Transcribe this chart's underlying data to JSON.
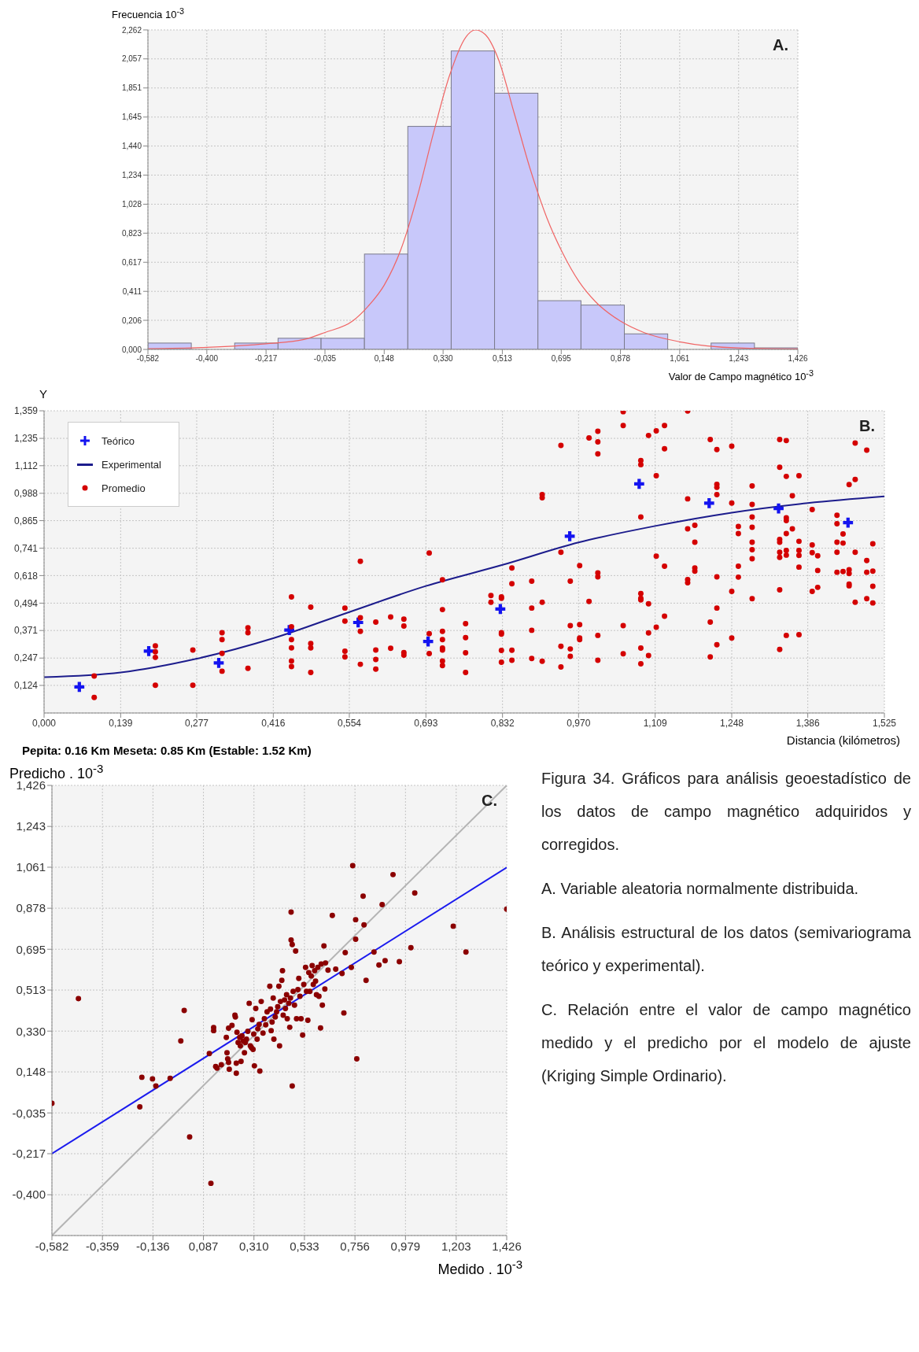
{
  "chart_data": [
    {
      "type": "histogram",
      "ylabel": "Frecuencia 10$^{-3}$",
      "xlabel": "Valor de Campo magnético 10$^{-3}$",
      "annotations": [
        "A."
      ],
      "color": "#c8c8fa",
      "grid": true,
      "bins": [
        -0.582,
        -0.448,
        -0.314,
        -0.18,
        -0.047,
        0.087,
        0.221,
        0.355,
        0.489,
        0.623,
        0.756,
        0.89,
        1.024,
        1.158,
        1.292,
        1.426
      ],
      "values": [
        0.045,
        0,
        0.045,
        0.079,
        0.079,
        0.675,
        1.579,
        2.113,
        1.814,
        0.345,
        0.314,
        0.11,
        0,
        0.045,
        0.011
      ],
      "series": [
        {
          "type": "line",
          "color": "#f06464",
          "x": [
            -0.582,
            -0.4,
            -0.217,
            -0.1,
            -0.035,
            0.05,
            0.1,
            0.148,
            0.2,
            0.25,
            0.3,
            0.35,
            0.4,
            0.43,
            0.46,
            0.5,
            0.55,
            0.6,
            0.65,
            0.7,
            0.75,
            0.8,
            0.878,
            0.95,
            1.061,
            1.243,
            1.426
          ],
          "values": [
            0.005,
            0.015,
            0.04,
            0.07,
            0.12,
            0.2,
            0.31,
            0.455,
            0.71,
            1.08,
            1.53,
            1.94,
            2.21,
            2.262,
            2.23,
            2.06,
            1.67,
            1.27,
            0.935,
            0.68,
            0.48,
            0.34,
            0.2,
            0.12,
            0.054,
            0.01,
            0.003
          ]
        }
      ],
      "xlim": [
        -0.582,
        1.426
      ],
      "ylim": [
        0,
        2.262
      ],
      "xticks": [
        {
          "value": -0.582,
          "label": "-0,582"
        },
        {
          "value": -0.4,
          "label": "-0,400"
        },
        {
          "value": -0.217,
          "label": "-0,217"
        },
        {
          "value": -0.035,
          "label": "-0,035"
        },
        {
          "value": 0.148,
          "label": "0,148"
        },
        {
          "value": 0.33,
          "label": "0,330"
        },
        {
          "value": 0.513,
          "label": "0,513"
        },
        {
          "value": 0.695,
          "label": "0,695"
        },
        {
          "value": 0.878,
          "label": "0,878"
        },
        {
          "value": 1.061,
          "label": "1,061"
        },
        {
          "value": 1.243,
          "label": "1,243"
        },
        {
          "value": 1.426,
          "label": "1,426"
        }
      ],
      "yticks": [
        {
          "value": 0,
          "label": "0,000"
        },
        {
          "value": 0.206,
          "label": "0,206"
        },
        {
          "value": 0.411,
          "label": "0,411"
        },
        {
          "value": 0.617,
          "label": "0,617"
        },
        {
          "value": 0.823,
          "label": "0,823"
        },
        {
          "value": 1.028,
          "label": "1,028"
        },
        {
          "value": 1.234,
          "label": "1,234"
        },
        {
          "value": 1.44,
          "label": "1,440"
        },
        {
          "value": 1.645,
          "label": "1,645"
        },
        {
          "value": 1.851,
          "label": "1,851"
        },
        {
          "value": 2.057,
          "label": "2,057"
        },
        {
          "value": 2.262,
          "label": "2,262"
        }
      ]
    },
    {
      "type": "scatter",
      "ylabel": "Y",
      "xlabel": "Distancia (kilómetros)",
      "annotations": [
        "B.",
        "Pepita: 0.16 Km    Meseta: 0.85 Km    (Estable: 1.52 Km)"
      ],
      "grid": true,
      "legend": "top left",
      "series": [
        {
          "name": "Teórico",
          "type": "scatter",
          "marker": "cross",
          "color": "#1414f0",
          "x": [
            0.064,
            0.19,
            0.317,
            0.445,
            0.57,
            0.697,
            0.828,
            0.954,
            1.08,
            1.207,
            1.333,
            1.459
          ],
          "values": [
            0.117,
            0.278,
            0.225,
            0.373,
            0.407,
            0.322,
            0.468,
            0.795,
            1.03,
            0.944,
            0.92,
            0.856
          ]
        },
        {
          "name": "Experimental",
          "type": "line",
          "color": "#1c1c8c",
          "x": [
            0,
            0.139,
            0.277,
            0.416,
            0.554,
            0.693,
            0.832,
            0.97,
            1.109,
            1.248,
            1.386,
            1.525
          ],
          "values": [
            0.161,
            0.182,
            0.244,
            0.336,
            0.454,
            0.571,
            0.666,
            0.767,
            0.841,
            0.901,
            0.944,
            0.974
          ]
        },
        {
          "name": "Promedio",
          "type": "scatter",
          "marker": "circle",
          "color": "#d40000",
          "x": [
            0.091,
            0.091,
            0.202,
            0.202,
            0.202,
            0.202,
            0.27,
            0.27,
            0.323,
            0.323,
            0.323,
            0.323,
            0.37,
            0.37,
            0.37,
            0.449,
            0.449,
            0.449,
            0.449,
            0.449,
            0.449,
            0.484,
            0.484,
            0.484,
            0.484,
            0.546,
            0.546,
            0.546,
            0.546,
            0.574,
            0.574,
            0.574,
            0.574,
            0.602,
            0.602,
            0.602,
            0.602,
            0.629,
            0.629,
            0.653,
            0.653,
            0.653,
            0.653,
            0.699,
            0.699,
            0.699,
            0.723,
            0.723,
            0.723,
            0.723,
            0.723,
            0.723,
            0.723,
            0.723,
            0.765,
            0.765,
            0.765,
            0.765,
            0.811,
            0.811,
            0.83,
            0.83,
            0.83,
            0.83,
            0.83,
            0.83,
            0.849,
            0.849,
            0.849,
            0.849,
            0.885,
            0.885,
            0.885,
            0.885,
            0.904,
            0.904,
            0.904,
            0.904,
            0.938,
            0.938,
            0.938,
            0.938,
            0.955,
            0.955,
            0.955,
            0.955,
            0.972,
            0.972,
            0.972,
            0.972,
            0.989,
            0.989,
            1.005,
            1.005,
            1.005,
            1.005,
            1.005,
            1.005,
            1.005,
            1.051,
            1.051,
            1.051,
            1.051,
            1.083,
            1.083,
            1.083,
            1.083,
            1.083,
            1.083,
            1.083,
            1.083,
            1.097,
            1.097,
            1.097,
            1.097,
            1.111,
            1.111,
            1.111,
            1.111,
            1.126,
            1.126,
            1.126,
            1.126,
            1.168,
            1.168,
            1.168,
            1.168,
            1.168,
            1.181,
            1.181,
            1.181,
            1.181,
            1.209,
            1.209,
            1.209,
            1.221,
            1.221,
            1.221,
            1.221,
            1.221,
            1.221,
            1.221,
            1.248,
            1.248,
            1.248,
            1.248,
            1.26,
            1.26,
            1.26,
            1.26,
            1.285,
            1.285,
            1.285,
            1.285,
            1.285,
            1.285,
            1.285,
            1.285,
            1.335,
            1.335,
            1.335,
            1.335,
            1.335,
            1.335,
            1.335,
            1.335,
            1.347,
            1.347,
            1.347,
            1.347,
            1.347,
            1.347,
            1.347,
            1.347,
            1.358,
            1.358,
            1.37,
            1.37,
            1.37,
            1.37,
            1.37,
            1.37,
            1.394,
            1.394,
            1.394,
            1.394,
            1.404,
            1.404,
            1.404,
            1.439,
            1.439,
            1.439,
            1.439,
            1.439,
            1.45,
            1.45,
            1.45,
            1.461,
            1.461,
            1.461,
            1.461,
            1.461,
            1.472,
            1.472,
            1.472,
            1.472,
            1.493,
            1.493,
            1.493,
            1.493,
            1.504,
            1.504,
            1.504,
            1.504
          ],
          "values": [
            0.166,
            0.07,
            0.302,
            0.275,
            0.25,
            0.125,
            0.283,
            0.125,
            0.361,
            0.33,
            0.268,
            0.188,
            0.383,
            0.361,
            0.201,
            0.522,
            0.388,
            0.33,
            0.293,
            0.234,
            0.209,
            0.476,
            0.312,
            0.293,
            0.182,
            0.472,
            0.413,
            0.278,
            0.252,
            0.682,
            0.428,
            0.367,
            0.219,
            0.409,
            0.283,
            0.241,
            0.197,
            0.432,
            0.291,
            0.422,
            0.391,
            0.272,
            0.26,
            0.719,
            0.357,
            0.267,
            0.599,
            0.465,
            0.367,
            0.33,
            0.292,
            0.283,
            0.234,
            0.213,
            0.402,
            0.339,
            0.271,
            0.182,
            0.528,
            0.498,
            0.522,
            0.516,
            0.361,
            0.355,
            0.281,
            0.228,
            0.652,
            0.581,
            0.282,
            0.237,
            0.593,
            0.472,
            0.372,
            0.245,
            0.982,
            0.968,
            0.498,
            0.233,
            1.203,
            0.723,
            0.3,
            0.207,
            0.593,
            0.393,
            0.288,
            0.255,
            0.663,
            0.397,
            0.337,
            0.33,
            1.237,
            0.502,
            1.267,
            1.219,
            1.165,
            0.63,
            0.612,
            0.349,
            0.237,
            1.355,
            1.293,
            0.393,
            0.266,
            1.135,
            1.117,
            0.881,
            0.537,
            0.516,
            0.509,
            0.292,
            0.221,
            1.248,
            0.491,
            0.36,
            0.258,
            1.269,
            1.067,
            0.705,
            0.386,
            1.293,
            1.188,
            0.66,
            0.435,
            1.358,
            0.963,
            0.828,
            0.6,
            0.586,
            0.844,
            0.768,
            0.652,
            0.638,
            1.23,
            0.409,
            0.252,
            1.185,
            1.028,
            1.015,
            0.982,
            0.612,
            0.472,
            0.307,
            1.2,
            0.944,
            0.547,
            0.337,
            0.839,
            0.807,
            0.66,
            0.611,
            1.021,
            0.938,
            0.881,
            0.835,
            0.768,
            0.734,
            0.694,
            0.514,
            1.23,
            1.105,
            0.78,
            0.768,
            0.723,
            0.7,
            0.554,
            0.286,
            1.225,
            1.064,
            0.878,
            0.865,
            0.807,
            0.731,
            0.71,
            0.349,
            0.977,
            0.828,
            1.067,
            0.772,
            0.731,
            0.709,
            0.656,
            0.352,
            0.915,
            0.756,
            0.721,
            0.547,
            0.707,
            0.641,
            0.565,
            0.889,
            0.851,
            0.768,
            0.723,
            0.633,
            0.805,
            0.764,
            0.636,
            1.027,
            0.644,
            0.627,
            0.58,
            0.572,
            1.214,
            1.05,
            0.723,
            0.498,
            1.182,
            0.686,
            0.633,
            0.514,
            0.761,
            0.638,
            0.57,
            0.495
          ]
        }
      ],
      "xlim": [
        0,
        1.525
      ],
      "ylim": [
        0,
        1.359
      ],
      "xticks": [
        {
          "value": 0,
          "label": "0,000"
        },
        {
          "value": 0.139,
          "label": "0,139"
        },
        {
          "value": 0.277,
          "label": "0,277"
        },
        {
          "value": 0.416,
          "label": "0,416"
        },
        {
          "value": 0.554,
          "label": "0,554"
        },
        {
          "value": 0.693,
          "label": "0,693"
        },
        {
          "value": 0.832,
          "label": "0,832"
        },
        {
          "value": 0.97,
          "label": "0,970"
        },
        {
          "value": 1.109,
          "label": "1,109"
        },
        {
          "value": 1.248,
          "label": "1,248"
        },
        {
          "value": 1.386,
          "label": "1,386"
        },
        {
          "value": 1.525,
          "label": "1,525"
        }
      ],
      "yticks": [
        {
          "value": 0.124,
          "label": "0,124"
        },
        {
          "value": 0.247,
          "label": "0,247"
        },
        {
          "value": 0.371,
          "label": "0,371"
        },
        {
          "value": 0.494,
          "label": "0,494"
        },
        {
          "value": 0.618,
          "label": "0,618"
        },
        {
          "value": 0.741,
          "label": "0,741"
        },
        {
          "value": 0.865,
          "label": "0,865"
        },
        {
          "value": 0.988,
          "label": "0,988"
        },
        {
          "value": 1.112,
          "label": "1,112"
        },
        {
          "value": 1.235,
          "label": "1,235"
        },
        {
          "value": 1.359,
          "label": "1,359"
        }
      ]
    },
    {
      "type": "scatter",
      "ylabel": "Predicho . 10$^{-3}$",
      "xlabel": "Medido . 10$^{-3}$",
      "annotations": [
        "C.",
        "Figura 34. Gráficos para análisis geoestadístico de los datos de campo magnético adquiridos y corregidos.",
        "A. Variable aleatoria normalmente distribuida.",
        "B. Análisis estructural de los datos (semivariograma teórico y experimental).",
        "C. Relación entre el valor de campo magnético medido y el predicho por el modelo de ajuste (Kriging Simple Ordinario)."
      ],
      "grid": true,
      "series": [
        {
          "type": "line",
          "color": "#b4b4b4",
          "x": [
            -0.582,
            1.426
          ],
          "values": [
            -0.582,
            1.426
          ]
        },
        {
          "type": "line",
          "color": "#1a1aee",
          "x": [
            -0.582,
            1.426
          ],
          "values": [
            -0.217,
            1.06
          ]
        },
        {
          "type": "scatter",
          "marker": "circle",
          "color": "#8b0000",
          "x": [
            -0.582,
            -0.465,
            -0.185,
            -0.138,
            -0.123,
            -0.06,
            -0.194,
            -0.013,
            0.002,
            0.026,
            0.12,
            0.113,
            0.132,
            0.132,
            0.141,
            0.147,
            0.166,
            0.188,
            0.191,
            0.194,
            0.198,
            0.201,
            0.198,
            0.213,
            0.226,
            0.228,
            0.232,
            0.232,
            0.235,
            0.24,
            0.247,
            0.25,
            0.253,
            0.257,
            0.262,
            0.268,
            0.272,
            0.277,
            0.283,
            0.289,
            0.294,
            0.299,
            0.302,
            0.306,
            0.309,
            0.312,
            0.318,
            0.324,
            0.327,
            0.333,
            0.336,
            0.342,
            0.35,
            0.356,
            0.362,
            0.368,
            0.38,
            0.383,
            0.386,
            0.39,
            0.395,
            0.398,
            0.404,
            0.41,
            0.415,
            0.42,
            0.423,
            0.427,
            0.433,
            0.436,
            0.439,
            0.445,
            0.449,
            0.454,
            0.457,
            0.464,
            0.468,
            0.471,
            0.474,
            0.474,
            0.479,
            0.479,
            0.483,
            0.489,
            0.494,
            0.498,
            0.504,
            0.508,
            0.513,
            0.518,
            0.525,
            0.53,
            0.538,
            0.542,
            0.548,
            0.552,
            0.557,
            0.563,
            0.567,
            0.572,
            0.578,
            0.582,
            0.586,
            0.592,
            0.597,
            0.604,
            0.607,
            0.612,
            0.619,
            0.623,
            0.626,
            0.637,
            0.656,
            0.671,
            0.699,
            0.707,
            0.713,
            0.74,
            0.746,
            0.759,
            0.759,
            0.764,
            0.792,
            0.796,
            0.805,
            0.84,
            0.862,
            0.876,
            0.889,
            0.924,
            0.952,
            1.003,
            1.02,
            1.19,
            1.246,
            1.426
          ],
          "values": [
            0.008,
            0.475,
            0.124,
            0.117,
            0.085,
            0.119,
            -0.008,
            0.286,
            0.422,
            -0.142,
            -0.349,
            0.23,
            0.346,
            0.332,
            0.172,
            0.165,
            0.18,
            0.302,
            0.233,
            0.206,
            0.19,
            0.16,
            0.343,
            0.355,
            0.401,
            0.393,
            0.187,
            0.142,
            0.325,
            0.279,
            0.302,
            0.264,
            0.195,
            0.309,
            0.286,
            0.233,
            0.279,
            0.294,
            0.329,
            0.454,
            0.264,
            0.256,
            0.381,
            0.248,
            0.317,
            0.175,
            0.431,
            0.294,
            0.34,
            0.36,
            0.152,
            0.462,
            0.321,
            0.385,
            0.358,
            0.416,
            0.53,
            0.428,
            0.332,
            0.37,
            0.477,
            0.294,
            0.393,
            0.416,
            0.439,
            0.53,
            0.264,
            0.462,
            0.556,
            0.599,
            0.401,
            0.469,
            0.431,
            0.492,
            0.385,
            0.454,
            0.347,
            0.477,
            0.861,
            0.736,
            0.716,
            0.085,
            0.507,
            0.446,
            0.687,
            0.385,
            0.515,
            0.565,
            0.485,
            0.385,
            0.312,
            0.538,
            0.614,
            0.507,
            0.378,
            0.591,
            0.507,
            0.576,
            0.622,
            0.538,
            0.599,
            0.553,
            0.492,
            0.614,
            0.485,
            0.344,
            0.629,
            0.446,
            0.71,
            0.518,
            0.634,
            0.602,
            0.846,
            0.606,
            0.587,
            0.411,
            0.68,
            0.614,
            1.068,
            0.827,
            0.74,
            0.206,
            0.932,
            0.804,
            0.556,
            0.683,
            0.625,
            0.894,
            0.644,
            1.028,
            0.64,
            0.702,
            0.946,
            0.798,
            0.683,
            0.874
          ]
        }
      ],
      "xlim": [
        -0.582,
        1.426
      ],
      "ylim": [
        -0.582,
        1.426
      ],
      "xticks": [
        {
          "value": -0.582,
          "label": "-0,582"
        },
        {
          "value": -0.359,
          "label": "-0,359"
        },
        {
          "value": -0.136,
          "label": "-0,136"
        },
        {
          "value": 0.087,
          "label": "0,087"
        },
        {
          "value": 0.31,
          "label": "0,310"
        },
        {
          "value": 0.533,
          "label": "0,533"
        },
        {
          "value": 0.756,
          "label": "0,756"
        },
        {
          "value": 0.979,
          "label": "0,979"
        },
        {
          "value": 1.203,
          "label": "1,203"
        },
        {
          "value": 1.426,
          "label": "1,426"
        }
      ],
      "yticks": [
        {
          "value": -0.4,
          "label": "-0,400"
        },
        {
          "value": -0.217,
          "label": "-0,217"
        },
        {
          "value": -0.035,
          "label": "-0,035"
        },
        {
          "value": 0.148,
          "label": "0,148"
        },
        {
          "value": 0.33,
          "label": "0,330"
        },
        {
          "value": 0.513,
          "label": "0,513"
        },
        {
          "value": 0.695,
          "label": "0,695"
        },
        {
          "value": 0.878,
          "label": "0,878"
        },
        {
          "value": 1.061,
          "label": "1,061"
        },
        {
          "value": 1.243,
          "label": "1,243"
        },
        {
          "value": 1.426,
          "label": "1,426"
        }
      ]
    }
  ]
}
